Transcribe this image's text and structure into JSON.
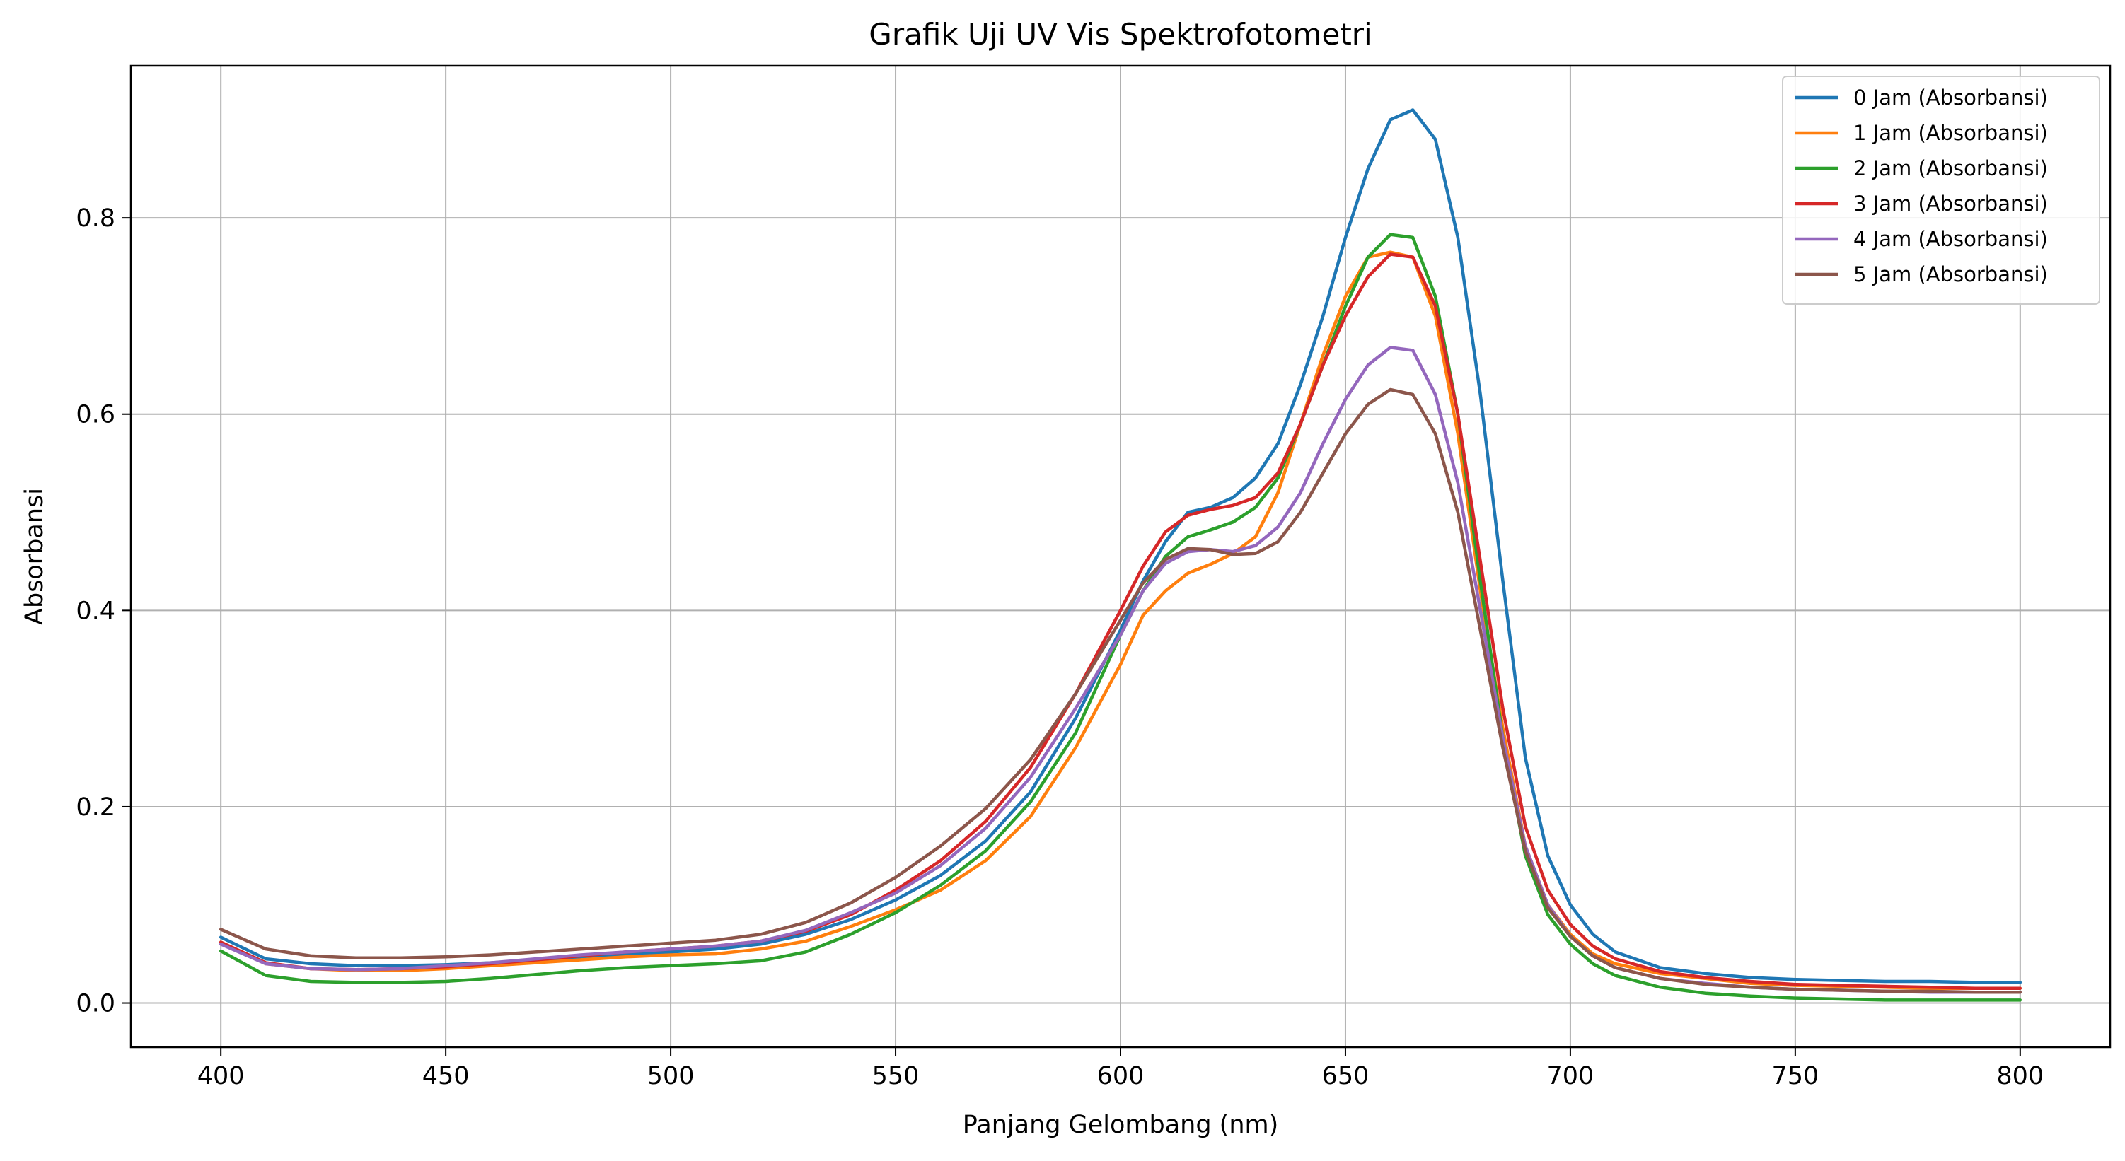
{
  "chart_data": {
    "type": "line",
    "title": "Grafik Uji UV Vis Spektrofotometri",
    "xlabel": "Panjang Gelombang (nm)",
    "ylabel": "Absorbansi",
    "xlim": [
      380,
      820
    ],
    "ylim": [
      -0.045,
      0.955
    ],
    "xticks": [
      400,
      450,
      500,
      550,
      600,
      650,
      700,
      750,
      800
    ],
    "yticks": [
      0.0,
      0.2,
      0.4,
      0.6,
      0.8
    ],
    "xtick_labels": [
      "400",
      "450",
      "500",
      "550",
      "600",
      "650",
      "700",
      "750",
      "800"
    ],
    "ytick_labels": [
      "0.0",
      "0.2",
      "0.4",
      "0.6",
      "0.8"
    ],
    "grid": true,
    "legend_position": "top-right",
    "x": [
      400,
      410,
      420,
      430,
      440,
      450,
      460,
      470,
      480,
      490,
      500,
      510,
      520,
      530,
      540,
      550,
      560,
      570,
      580,
      590,
      600,
      605,
      610,
      615,
      620,
      625,
      630,
      635,
      640,
      645,
      650,
      655,
      660,
      665,
      670,
      675,
      680,
      685,
      690,
      695,
      700,
      705,
      710,
      720,
      730,
      740,
      750,
      760,
      770,
      780,
      790,
      800
    ],
    "series": [
      {
        "name": "0 Jam (Absorbansi)",
        "color": "#1f77b4",
        "values": [
          0.067,
          0.045,
          0.04,
          0.038,
          0.038,
          0.039,
          0.041,
          0.044,
          0.047,
          0.05,
          0.052,
          0.055,
          0.06,
          0.07,
          0.085,
          0.105,
          0.13,
          0.165,
          0.215,
          0.29,
          0.38,
          0.43,
          0.47,
          0.5,
          0.505,
          0.515,
          0.535,
          0.57,
          0.63,
          0.7,
          0.78,
          0.85,
          0.9,
          0.91,
          0.88,
          0.78,
          0.62,
          0.43,
          0.25,
          0.15,
          0.1,
          0.07,
          0.052,
          0.036,
          0.03,
          0.026,
          0.024,
          0.023,
          0.022,
          0.022,
          0.021,
          0.021
        ]
      },
      {
        "name": "1 Jam (Absorbansi)",
        "color": "#ff7f0e",
        "values": [
          0.062,
          0.04,
          0.035,
          0.033,
          0.033,
          0.035,
          0.038,
          0.041,
          0.044,
          0.047,
          0.049,
          0.05,
          0.055,
          0.063,
          0.078,
          0.095,
          0.115,
          0.145,
          0.19,
          0.26,
          0.345,
          0.395,
          0.42,
          0.438,
          0.447,
          0.458,
          0.475,
          0.52,
          0.59,
          0.66,
          0.72,
          0.76,
          0.765,
          0.76,
          0.7,
          0.58,
          0.42,
          0.28,
          0.16,
          0.1,
          0.07,
          0.05,
          0.04,
          0.03,
          0.025,
          0.02,
          0.018,
          0.017,
          0.016,
          0.015,
          0.015,
          0.015
        ]
      },
      {
        "name": "2 Jam (Absorbansi)",
        "color": "#2ca02c",
        "values": [
          0.053,
          0.028,
          0.022,
          0.021,
          0.021,
          0.022,
          0.025,
          0.029,
          0.033,
          0.036,
          0.038,
          0.04,
          0.043,
          0.052,
          0.07,
          0.092,
          0.12,
          0.155,
          0.205,
          0.275,
          0.375,
          0.42,
          0.455,
          0.475,
          0.482,
          0.49,
          0.505,
          0.535,
          0.59,
          0.65,
          0.71,
          0.76,
          0.783,
          0.78,
          0.72,
          0.6,
          0.43,
          0.27,
          0.15,
          0.09,
          0.06,
          0.04,
          0.028,
          0.016,
          0.01,
          0.007,
          0.005,
          0.004,
          0.003,
          0.003,
          0.003,
          0.003
        ]
      },
      {
        "name": "3 Jam (Absorbansi)",
        "color": "#d62728",
        "values": [
          0.062,
          0.041,
          0.035,
          0.034,
          0.035,
          0.037,
          0.04,
          0.044,
          0.048,
          0.052,
          0.055,
          0.058,
          0.063,
          0.073,
          0.09,
          0.115,
          0.145,
          0.185,
          0.24,
          0.315,
          0.4,
          0.445,
          0.48,
          0.497,
          0.503,
          0.507,
          0.515,
          0.54,
          0.59,
          0.65,
          0.7,
          0.74,
          0.763,
          0.76,
          0.71,
          0.6,
          0.45,
          0.3,
          0.18,
          0.115,
          0.08,
          0.058,
          0.045,
          0.032,
          0.026,
          0.022,
          0.019,
          0.018,
          0.017,
          0.016,
          0.015,
          0.015
        ]
      },
      {
        "name": "4 Jam (Absorbansi)",
        "color": "#9467bd",
        "values": [
          0.06,
          0.04,
          0.035,
          0.034,
          0.035,
          0.038,
          0.041,
          0.045,
          0.049,
          0.052,
          0.055,
          0.058,
          0.063,
          0.074,
          0.092,
          0.112,
          0.14,
          0.178,
          0.23,
          0.3,
          0.375,
          0.42,
          0.448,
          0.46,
          0.462,
          0.46,
          0.466,
          0.485,
          0.52,
          0.57,
          0.615,
          0.65,
          0.668,
          0.665,
          0.62,
          0.53,
          0.4,
          0.27,
          0.16,
          0.1,
          0.068,
          0.048,
          0.036,
          0.025,
          0.02,
          0.016,
          0.014,
          0.013,
          0.012,
          0.011,
          0.011,
          0.011
        ]
      },
      {
        "name": "5 Jam (Absorbansi)",
        "color": "#8c564b",
        "values": [
          0.075,
          0.055,
          0.048,
          0.046,
          0.046,
          0.047,
          0.049,
          0.052,
          0.055,
          0.058,
          0.061,
          0.064,
          0.07,
          0.082,
          0.102,
          0.128,
          0.16,
          0.198,
          0.248,
          0.315,
          0.39,
          0.428,
          0.452,
          0.463,
          0.462,
          0.457,
          0.458,
          0.47,
          0.5,
          0.54,
          0.58,
          0.61,
          0.625,
          0.62,
          0.58,
          0.5,
          0.38,
          0.26,
          0.155,
          0.097,
          0.068,
          0.048,
          0.036,
          0.025,
          0.019,
          0.016,
          0.014,
          0.013,
          0.012,
          0.012,
          0.011,
          0.011
        ]
      }
    ]
  }
}
